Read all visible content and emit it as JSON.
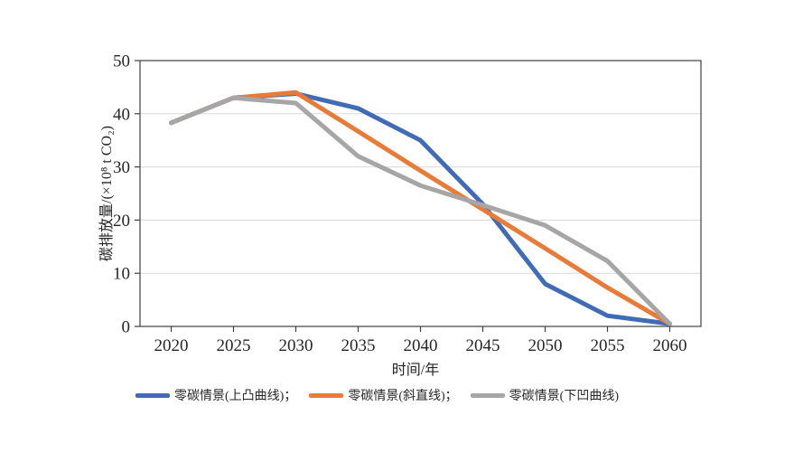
{
  "chart_data": {
    "type": "line",
    "title": "",
    "xlabel": "时间/年",
    "ylabel": "碳排放量/(×10⁸ t CO₂)",
    "categories": [
      "2020",
      "2025",
      "2030",
      "2035",
      "2040",
      "2045",
      "2050",
      "2055",
      "2060"
    ],
    "yticks": [
      0,
      10,
      20,
      30,
      40,
      50
    ],
    "ylim": [
      0,
      50
    ],
    "grid": "horizontal",
    "legend_position": "bottom",
    "series": [
      {
        "name": "零碳情景(上凸曲线)",
        "legend_label": "零碳情景(上凸曲线)；",
        "color": "#3F6CB5",
        "values": [
          38.3,
          43.0,
          43.8,
          41.0,
          35.0,
          23.0,
          8.0,
          2.0,
          0.5
        ]
      },
      {
        "name": "零碳情景(斜直线)",
        "legend_label": "零碳情景(斜直线)；",
        "color": "#E87B38",
        "values": [
          38.3,
          43.0,
          44.0,
          36.7,
          29.3,
          22.0,
          14.7,
          7.3,
          0.5
        ]
      },
      {
        "name": "零碳情景(下凹曲线)",
        "legend_label": "零碳情景(下凹曲线)",
        "color": "#A6A6A6",
        "values": [
          38.3,
          43.0,
          42.0,
          32.0,
          26.5,
          22.8,
          19.0,
          12.3,
          0.5
        ]
      }
    ],
    "colors": {
      "background": "#FFFFFF",
      "axis": "#3F3F3F",
      "gridline": "#D9D9D9",
      "text": "#262626"
    }
  }
}
